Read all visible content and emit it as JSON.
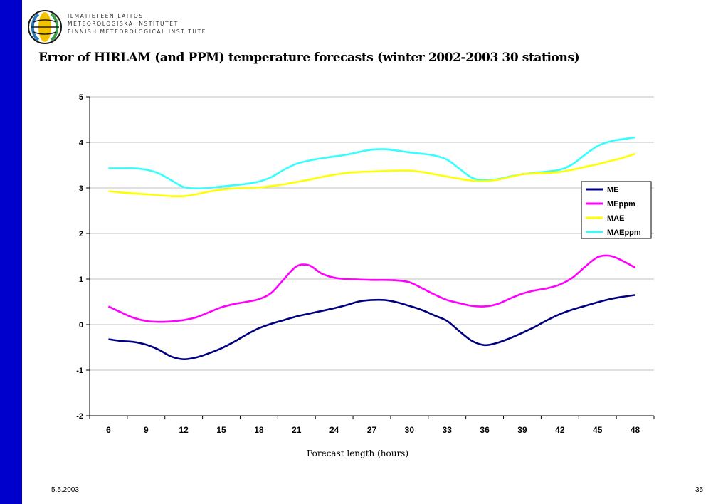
{
  "header": {
    "org_lines": [
      "ILMATIETEEN LAITOS",
      "METEOROLOGISKA INSTITUTET",
      "FINNISH METEOROLOGICAL INSTITUTE"
    ],
    "logo_icon": "fmi-logo-icon"
  },
  "slide": {
    "title": "Error of HIRLAM (and PPM) temperature forecasts (winter 2002-2003 30 stations)",
    "date": "5.5.2003",
    "page_number": "35",
    "accent_color": "#0000cc"
  },
  "chart_data": {
    "type": "line",
    "title": "",
    "xlabel": "Forecast length (hours)",
    "ylabel": "",
    "x": [
      6,
      7,
      8,
      9,
      10,
      11,
      12,
      13,
      14,
      15,
      16,
      17,
      18,
      19,
      20,
      21,
      22,
      23,
      24,
      25,
      26,
      27,
      28,
      29,
      30,
      31,
      32,
      33,
      34,
      35,
      36,
      37,
      38,
      39,
      40,
      41,
      42,
      43,
      44,
      45,
      46,
      47,
      48
    ],
    "xticks": [
      "6",
      "9",
      "12",
      "15",
      "18",
      "21",
      "24",
      "27",
      "30",
      "33",
      "36",
      "39",
      "42",
      "45",
      "48"
    ],
    "xlim": [
      5,
      50
    ],
    "ylim": [
      -2,
      5
    ],
    "yticks": [
      "-2",
      "-1",
      "0",
      "1",
      "2",
      "3",
      "4",
      "5"
    ],
    "grid": true,
    "legend": "right",
    "series": [
      {
        "name": "ME",
        "color": "#000080",
        "values": [
          -0.32,
          -0.36,
          -0.38,
          -0.44,
          -0.55,
          -0.7,
          -0.76,
          -0.72,
          -0.63,
          -0.52,
          -0.38,
          -0.22,
          -0.08,
          0.02,
          0.1,
          0.18,
          0.24,
          0.3,
          0.36,
          0.43,
          0.51,
          0.54,
          0.54,
          0.49,
          0.41,
          0.32,
          0.2,
          0.08,
          -0.15,
          -0.36,
          -0.45,
          -0.4,
          -0.3,
          -0.18,
          -0.05,
          0.1,
          0.23,
          0.33,
          0.41,
          0.49,
          0.56,
          0.61,
          0.65
        ]
      },
      {
        "name": "MEppm",
        "color": "#ff00ff",
        "values": [
          0.4,
          0.27,
          0.15,
          0.08,
          0.06,
          0.07,
          0.1,
          0.16,
          0.27,
          0.38,
          0.45,
          0.5,
          0.56,
          0.7,
          1.0,
          1.28,
          1.3,
          1.12,
          1.03,
          1.0,
          0.99,
          0.98,
          0.98,
          0.97,
          0.93,
          0.8,
          0.66,
          0.54,
          0.47,
          0.41,
          0.4,
          0.45,
          0.57,
          0.68,
          0.75,
          0.8,
          0.88,
          1.03,
          1.27,
          1.48,
          1.51,
          1.4,
          1.25
        ]
      },
      {
        "name": "MAE",
        "color": "#ffff00",
        "values": [
          2.93,
          2.9,
          2.88,
          2.86,
          2.84,
          2.82,
          2.82,
          2.86,
          2.92,
          2.96,
          2.99,
          3.0,
          3.01,
          3.04,
          3.08,
          3.13,
          3.18,
          3.24,
          3.29,
          3.33,
          3.35,
          3.36,
          3.37,
          3.38,
          3.38,
          3.35,
          3.3,
          3.25,
          3.2,
          3.16,
          3.15,
          3.18,
          3.24,
          3.3,
          3.32,
          3.33,
          3.35,
          3.4,
          3.46,
          3.52,
          3.59,
          3.66,
          3.75
        ]
      },
      {
        "name": "MAEppm",
        "color": "#33ffff",
        "values": [
          3.43,
          3.43,
          3.43,
          3.4,
          3.32,
          3.17,
          3.02,
          2.99,
          3.0,
          3.03,
          3.06,
          3.09,
          3.14,
          3.24,
          3.4,
          3.53,
          3.6,
          3.65,
          3.69,
          3.73,
          3.79,
          3.84,
          3.85,
          3.82,
          3.78,
          3.75,
          3.71,
          3.62,
          3.42,
          3.22,
          3.17,
          3.19,
          3.25,
          3.3,
          3.33,
          3.36,
          3.4,
          3.52,
          3.73,
          3.92,
          4.02,
          4.07,
          4.11
        ]
      }
    ]
  }
}
